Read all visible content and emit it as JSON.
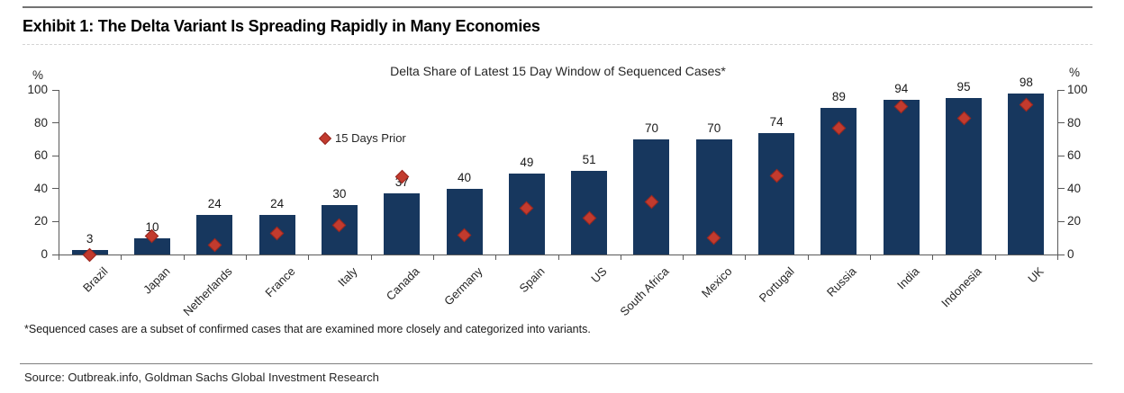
{
  "page": {
    "exhibit_title": "Exhibit 1: The Delta Variant Is Spreading Rapidly in Many Economies",
    "footnote": "*Sequenced cases are a subset of confirmed cases that are examined more closely and categorized into variants.",
    "source": "Source: Outbreak.info, Goldman Sachs Global Investment Research"
  },
  "chart_data": {
    "type": "bar",
    "title": "Delta Share of Latest 15 Day Window of Sequenced Cases*",
    "unit_label": "%",
    "ylim": [
      0,
      100
    ],
    "yticks": [
      0,
      20,
      40,
      60,
      80,
      100
    ],
    "grid": false,
    "axis_sides": [
      "left",
      "right"
    ],
    "legend_position": "inside-upper-left",
    "categories": [
      "Brazil",
      "Japan",
      "Netherlands",
      "France",
      "Italy",
      "Canada",
      "Germany",
      "Spain",
      "US",
      "South Africa",
      "Mexico",
      "Portugal",
      "Russia",
      "India",
      "Indonesia",
      "UK"
    ],
    "series": [
      {
        "name": "",
        "type": "bar",
        "color": "#17375E",
        "data_labels": true,
        "values": [
          3,
          10,
          24,
          24,
          30,
          37,
          40,
          49,
          51,
          70,
          70,
          74,
          89,
          94,
          95,
          98
        ]
      },
      {
        "name": "15 Days Prior",
        "type": "scatter",
        "marker": "diamond",
        "color": "#C23B2E",
        "marker_border_color": "#97261F",
        "values": [
          0,
          11,
          6,
          13,
          18,
          47,
          12,
          28,
          22,
          32,
          10,
          48,
          77,
          90,
          83,
          91
        ]
      }
    ],
    "legend": [
      {
        "label": "15 Days Prior",
        "marker": "diamond-icon",
        "color": "#C23B2E"
      }
    ]
  }
}
